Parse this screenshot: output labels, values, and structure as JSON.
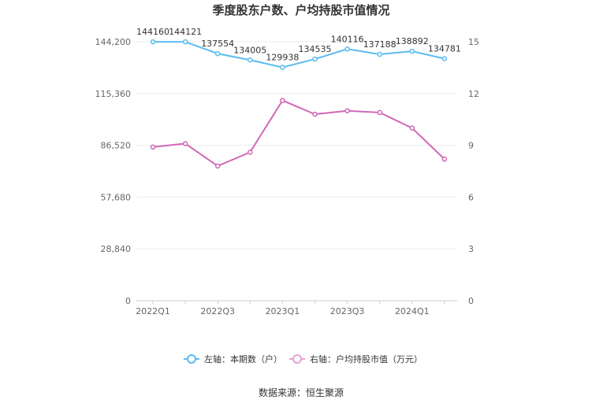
{
  "chart_data": {
    "type": "line",
    "title": "季度股东户数、户均持股市值情况",
    "categories": [
      "2022Q1",
      "2022Q2",
      "2022Q3",
      "2022Q4",
      "2023Q1",
      "2023Q2",
      "2023Q3",
      "2023Q4",
      "2024Q1",
      "2024Q2"
    ],
    "x_tick_labels": [
      "2022Q1",
      "",
      "2022Q3",
      "",
      "2023Q1",
      "",
      "2023Q3",
      "",
      "2024Q1",
      ""
    ],
    "left_axis": {
      "min": 0,
      "max": 144200,
      "ticks": [
        0,
        28840,
        57680,
        86520,
        115360,
        144200
      ],
      "tick_labels": [
        "0",
        "28,840",
        "57,680",
        "86,520",
        "115,360",
        "144,200"
      ]
    },
    "right_axis": {
      "min": 0,
      "max": 15,
      "ticks": [
        0,
        3,
        6,
        9,
        12,
        15
      ],
      "tick_labels": [
        "0",
        "3",
        "6",
        "9",
        "12",
        "15"
      ]
    },
    "series": [
      {
        "name": "左轴：本期数（户）",
        "axis": "left",
        "color": "#5bbcef",
        "values": [
          144160,
          144121,
          137554,
          134005,
          129938,
          134535,
          140116,
          137188,
          138892,
          134781
        ],
        "labels": [
          "144160",
          "144121",
          "137554",
          "134005",
          "129938",
          "134535",
          "140116",
          "137188",
          "138892",
          "134781"
        ]
      },
      {
        "name": "右轴：户均持股市值（万元）",
        "axis": "right",
        "color": "#d166b8",
        "values": [
          8.9,
          9.1,
          7.8,
          8.6,
          11.6,
          10.8,
          11.0,
          10.9,
          10.0,
          8.2
        ]
      }
    ],
    "legend_position": "bottom",
    "grid": true
  },
  "source": "数据来源：恒生聚源"
}
